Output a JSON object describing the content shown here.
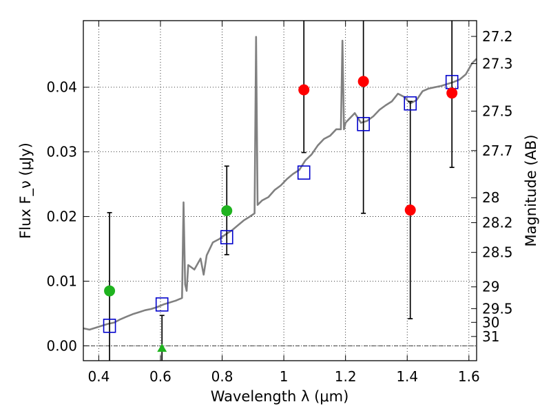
{
  "chart_data": {
    "type": "line",
    "xlabel": "Wavelength λ (μm)",
    "ylabel": "Flux F_ν (μJy)",
    "ylabel_right": "Magnitude (AB)",
    "xlim": [
      0.35,
      1.625
    ],
    "ylim": [
      -0.0023,
      0.0503
    ],
    "grid": true,
    "x_ticks": [
      "0.4",
      "0.6",
      "0.8",
      "1",
      "1.2",
      "1.4",
      "1.6"
    ],
    "x_tick_values": [
      0.4,
      0.6,
      0.8,
      1.0,
      1.2,
      1.4,
      1.6
    ],
    "y_ticks": [
      "0.00",
      "0.01",
      "0.02",
      "0.03",
      "0.04"
    ],
    "y_tick_values": [
      0.0,
      0.01,
      0.02,
      0.03,
      0.04
    ],
    "mag_ticks": [
      "27.2",
      "27.3",
      "27.5",
      "27.7",
      "28",
      "28.2",
      "28.5",
      "29",
      "29.5",
      "30",
      "31"
    ],
    "mag_tick_values": [
      27.2,
      27.3,
      27.5,
      27.7,
      28.0,
      28.2,
      28.5,
      29.0,
      29.5,
      30.0,
      31.0
    ],
    "colors": {
      "spectrum": "#808080",
      "model_box": "#0000cc",
      "green_point": "#1fb31f",
      "red_point": "#ff0000",
      "errorbar": "#000000"
    },
    "spectrum": {
      "x": [
        0.35,
        0.37,
        0.39,
        0.41,
        0.43,
        0.45,
        0.47,
        0.49,
        0.51,
        0.53,
        0.55,
        0.57,
        0.59,
        0.61,
        0.63,
        0.65,
        0.67,
        0.675,
        0.68,
        0.685,
        0.69,
        0.71,
        0.73,
        0.74,
        0.75,
        0.77,
        0.79,
        0.81,
        0.83,
        0.85,
        0.87,
        0.89,
        0.905,
        0.91,
        0.915,
        0.93,
        0.95,
        0.97,
        0.99,
        1.01,
        1.03,
        1.05,
        1.07,
        1.09,
        1.11,
        1.13,
        1.15,
        1.17,
        1.185,
        1.19,
        1.195,
        1.2,
        1.21,
        1.23,
        1.25,
        1.27,
        1.29,
        1.31,
        1.33,
        1.35,
        1.37,
        1.39,
        1.41,
        1.43,
        1.45,
        1.47,
        1.49,
        1.51,
        1.53,
        1.55,
        1.57,
        1.59,
        1.61,
        1.625
      ],
      "y": [
        0.0027,
        0.0025,
        0.0028,
        0.0031,
        0.0034,
        0.0036,
        0.0041,
        0.0045,
        0.0049,
        0.0052,
        0.0055,
        0.0057,
        0.006,
        0.0064,
        0.0067,
        0.007,
        0.0074,
        0.0222,
        0.0095,
        0.0085,
        0.0125,
        0.0118,
        0.0135,
        0.011,
        0.014,
        0.016,
        0.0165,
        0.0172,
        0.0178,
        0.0186,
        0.0194,
        0.02,
        0.0205,
        0.0478,
        0.0218,
        0.0225,
        0.023,
        0.0241,
        0.0248,
        0.0258,
        0.0266,
        0.0272,
        0.0287,
        0.0296,
        0.031,
        0.032,
        0.0325,
        0.0335,
        0.0335,
        0.0472,
        0.0335,
        0.0345,
        0.035,
        0.036,
        0.0345,
        0.0348,
        0.0355,
        0.0365,
        0.0372,
        0.0378,
        0.039,
        0.0385,
        0.0375,
        0.038,
        0.0394,
        0.0398,
        0.04,
        0.0402,
        0.0405,
        0.0408,
        0.0412,
        0.042,
        0.0437,
        0.0444
      ]
    },
    "series": [
      {
        "marker": "square",
        "x": [
          0.435,
          0.605,
          0.815,
          1.065,
          1.258,
          1.41,
          1.545
        ],
        "y": [
          0.0031,
          0.0064,
          0.0168,
          0.0268,
          0.0343,
          0.0375,
          0.0408
        ]
      },
      {
        "marker": "circle",
        "x": [
          0.435,
          0.815
        ],
        "y": [
          0.0085,
          0.0209
        ]
      },
      {
        "marker": "triangle",
        "x": [
          0.605
        ],
        "y": [
          -0.0004
        ]
      },
      {
        "marker": "circle",
        "x": [
          1.065,
          1.258,
          1.41,
          1.545
        ],
        "y": [
          0.0396,
          0.0409,
          0.021,
          0.0391
        ]
      }
    ],
    "errorbars": [
      {
        "x": 0.435,
        "low": -0.0023,
        "high": 0.0206,
        "cap_low": false,
        "cap_high": true
      },
      {
        "x": 0.605,
        "low": -0.0023,
        "high": 0.0047,
        "cap_low": false,
        "cap_high": true
      },
      {
        "x": 0.815,
        "low": 0.0141,
        "high": 0.0278,
        "cap_low": true,
        "cap_high": true
      },
      {
        "x": 1.065,
        "low": 0.0299,
        "high": 0.0503,
        "cap_low": true,
        "cap_high": false
      },
      {
        "x": 1.258,
        "low": 0.0205,
        "high": 0.0503,
        "cap_low": true,
        "cap_high": false
      },
      {
        "x": 1.41,
        "low": 0.0042,
        "high": 0.0378,
        "cap_low": true,
        "cap_high": true
      },
      {
        "x": 1.545,
        "low": 0.0276,
        "high": 0.0503,
        "cap_low": true,
        "cap_high": false
      }
    ]
  }
}
